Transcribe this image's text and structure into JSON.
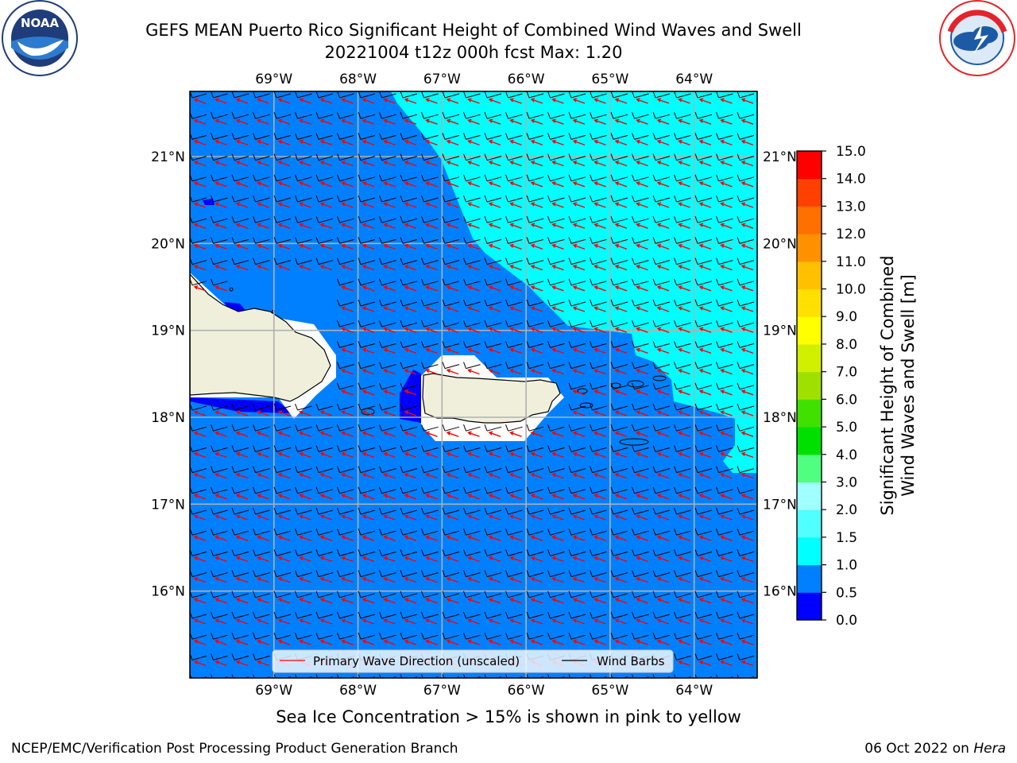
{
  "header": {
    "title_line1": "GEFS MEAN Puerto Rico Significant Height of Combined Wind Waves and Swell",
    "title_line2": "20221004 t12z 000h fcst   Max: 1.20"
  },
  "logos": {
    "left": {
      "text": "NOAA",
      "ring_text": "NATIONAL OCEANIC AND ATMOSPHERIC ADMINISTRATION",
      "ring_text_bottom": "U.S. DEPARTMENT OF COMMERCE",
      "colors": [
        "#1f3d7a",
        "#ffffff"
      ]
    },
    "right": {
      "ring_text": "NATIONAL WEATHER SERVICE",
      "colors": [
        "#e4232a",
        "#1d5aa6"
      ]
    }
  },
  "map": {
    "lon_labels": [
      "69°W",
      "68°W",
      "67°W",
      "66°W",
      "65°W",
      "64°W"
    ],
    "lat_labels": [
      "21°N",
      "20°N",
      "19°N",
      "18°N",
      "17°N",
      "16°N"
    ],
    "lon_values": [
      -69,
      -68,
      -67,
      -66,
      -65,
      -64
    ],
    "lat_values": [
      21,
      20,
      19,
      18,
      17,
      16
    ],
    "extent": {
      "lon_min": -70,
      "lon_max": -63.25,
      "lat_min": 15,
      "lat_max": 21.75
    },
    "legend": {
      "wave_label": "Primary Wave Direction (unscaled)",
      "barb_label": "Wind Barbs"
    },
    "colors": {
      "ocean_low": "#0080ff",
      "ocean_mid": "#00ffff",
      "lowest": "#0000ff",
      "land": "#efefdc",
      "wave_arrow": "#ff0000",
      "barb": "#000000"
    }
  },
  "colorbar": {
    "title_line1": "Significant Height of Combined",
    "title_line2": "Wind Waves and Swell [m]",
    "ticks": [
      "0.0",
      "0.5",
      "1.0",
      "1.5",
      "2.0",
      "3.0",
      "4.0",
      "5.0",
      "6.0",
      "7.0",
      "8.0",
      "9.0",
      "10.0",
      "11.0",
      "12.0",
      "13.0",
      "14.0",
      "15.0"
    ],
    "colors": [
      "#0000ff",
      "#0080ff",
      "#00ffff",
      "#50ffff",
      "#a0ffff",
      "#50ff80",
      "#00e000",
      "#40e000",
      "#a0e000",
      "#d0f000",
      "#ffff00",
      "#ffe000",
      "#ffc000",
      "#ff9000",
      "#ff7000",
      "#ff4000",
      "#ff0000"
    ]
  },
  "notes": {
    "ice": "Sea Ice Concentration > 15% is shown in pink to yellow"
  },
  "footer": {
    "left": "NCEP/EMC/Verification Post Processing Product Generation Branch",
    "date": "06 Oct 2022 on",
    "machine": "Hera"
  }
}
